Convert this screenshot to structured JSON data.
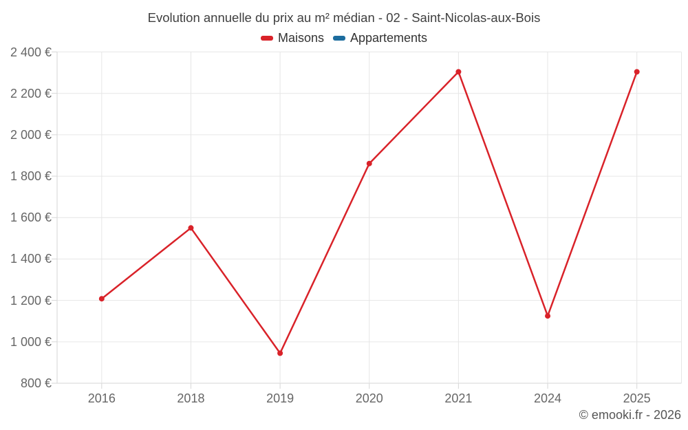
{
  "chart_data": {
    "type": "line",
    "title": "Evolution annuelle du prix au m² médian - 02 - Saint-Nicolas-aux-Bois",
    "categories": [
      "2016",
      "2018",
      "2019",
      "2020",
      "2021",
      "2024",
      "2025"
    ],
    "series": [
      {
        "name": "Maisons",
        "color": "#d92229",
        "values": [
          1208,
          1550,
          945,
          1861,
          2304,
          1125,
          2304
        ]
      },
      {
        "name": "Appartements",
        "color": "#1c6c9e",
        "values": []
      }
    ],
    "xlabel": "",
    "ylabel": "",
    "ylim": [
      800,
      2400
    ],
    "ytick_step": 200,
    "ytick_suffix": " €",
    "grid": true,
    "legend_position": "top",
    "credits": "© emooki.fr - 2026"
  },
  "colors": {
    "background": "#ffffff",
    "grid_line": "#e6e6e6",
    "axis_line": "#d6d6d6",
    "axis_label": "#666666",
    "title_text": "#3f3f3f",
    "legend_text": "#333333",
    "credits_text": "#555555",
    "maisons_series": "#d92229",
    "appartements_series": "#1c6c9e"
  }
}
